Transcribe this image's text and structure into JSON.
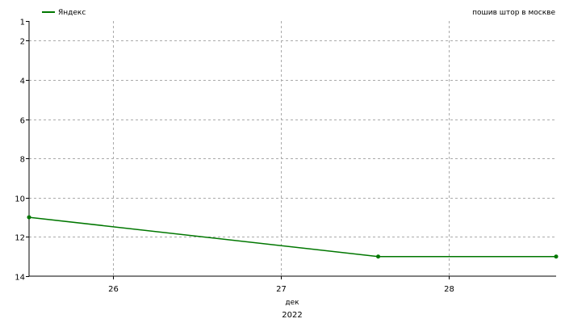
{
  "chart_data": {
    "type": "line",
    "title": "пошив штор в москве",
    "xlabel": "дек",
    "xlabel2": "2022",
    "x_ticks": [
      {
        "value": 26,
        "label": "26"
      },
      {
        "value": 27,
        "label": "27"
      },
      {
        "value": 28,
        "label": "28"
      }
    ],
    "y_ticks": [
      1,
      2,
      4,
      6,
      8,
      10,
      12,
      14
    ],
    "xlim": [
      25.5,
      28.64
    ],
    "ylim": [
      1,
      14
    ],
    "y_inverted": true,
    "grid": true,
    "legend_position": "top-left",
    "series": [
      {
        "name": "Яндекс",
        "color": "#007700",
        "points": [
          {
            "x": 25.5,
            "y": 11
          },
          {
            "x": 27.58,
            "y": 13
          },
          {
            "x": 28.64,
            "y": 13
          }
        ]
      }
    ]
  }
}
